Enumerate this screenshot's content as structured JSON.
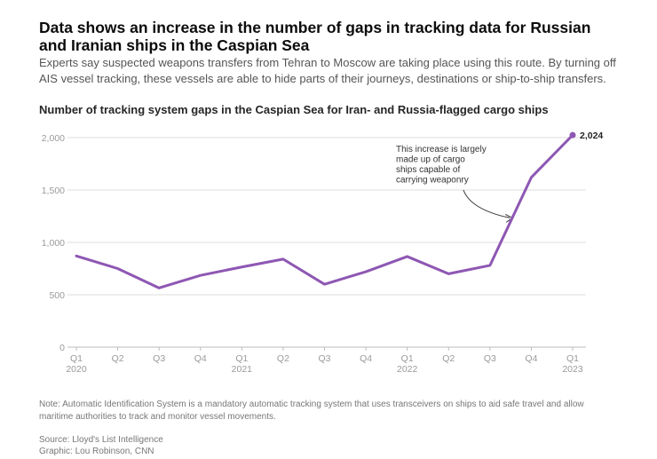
{
  "headline": "Data shows an increase in the number of gaps in tracking data for Russian and Iranian ships in the Caspian Sea",
  "dek": "Experts say suspected weapons transfers from Tehran to Moscow are taking place using this route. By turning off AIS vessel tracking, these vessels are able to hide parts of their journeys, destinations or ship-to-ship transfers.",
  "note": "Note: Automatic Identification System is a mandatory automatic tracking system that uses transceivers on ships to aid safe travel and allow maritime authorities to track and monitor vessel movements.",
  "source": "Source: Lloyd's List Intelligence",
  "credit": "Graphic: Lou Robinson, CNN",
  "colors": {
    "line": "#8e57b3",
    "grid": "#dddddd",
    "axis_text": "#9a9a9a"
  },
  "chart_data": {
    "type": "line",
    "title": "Number of tracking system gaps in the Caspian Sea for Iran- and Russia-flagged cargo ships",
    "categories": [
      "Q1 2020",
      "Q2 2020",
      "Q3 2020",
      "Q4 2020",
      "Q1 2021",
      "Q2 2021",
      "Q3 2021",
      "Q4 2021",
      "Q1 2022",
      "Q2 2022",
      "Q3 2022",
      "Q4 2022",
      "Q1 2023"
    ],
    "tick_labels": [
      {
        "quarter": "Q1",
        "year": "2020"
      },
      {
        "quarter": "Q2",
        "year": ""
      },
      {
        "quarter": "Q3",
        "year": ""
      },
      {
        "quarter": "Q4",
        "year": ""
      },
      {
        "quarter": "Q1",
        "year": "2021"
      },
      {
        "quarter": "Q2",
        "year": ""
      },
      {
        "quarter": "Q3",
        "year": ""
      },
      {
        "quarter": "Q4",
        "year": ""
      },
      {
        "quarter": "Q1",
        "year": "2022"
      },
      {
        "quarter": "Q2",
        "year": ""
      },
      {
        "quarter": "Q3",
        "year": ""
      },
      {
        "quarter": "Q4",
        "year": ""
      },
      {
        "quarter": "Q1",
        "year": "2023"
      }
    ],
    "series": [
      {
        "values": [
          870,
          750,
          565,
          685,
          765,
          840,
          600,
          720,
          865,
          700,
          780,
          1620,
          2024
        ]
      }
    ],
    "yticks": [
      {
        "value": 0,
        "label": "0"
      },
      {
        "value": 500,
        "label": "500"
      },
      {
        "value": 1000,
        "label": "1,000"
      },
      {
        "value": 1500,
        "label": "1,500"
      },
      {
        "value": 2000,
        "label": "2,000"
      }
    ],
    "ylim": [
      0,
      2100
    ],
    "grid": true,
    "end_label": "2,024",
    "annotation": {
      "lines": [
        "This increase is largely",
        "made up of cargo",
        "ships capable of",
        "carrying weaponry"
      ],
      "points_to": "Q4 2022"
    }
  }
}
